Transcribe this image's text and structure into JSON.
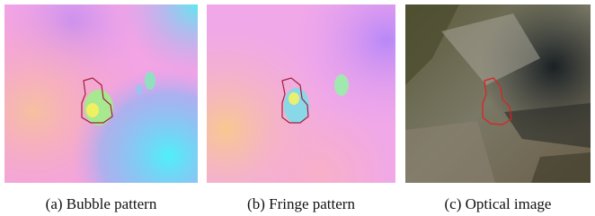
{
  "panels": [
    {
      "caption": "(a) Bubble pattern"
    },
    {
      "caption": "(b) Fringe pattern"
    },
    {
      "caption": "(c) Optical image"
    }
  ]
}
